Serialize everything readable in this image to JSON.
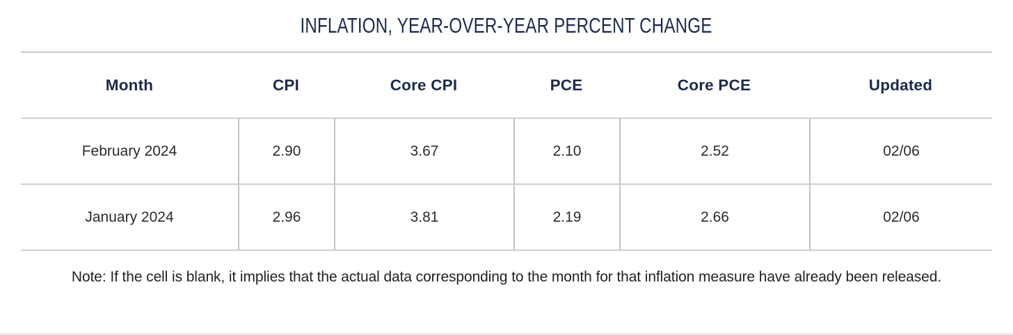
{
  "page": {
    "title": "INFLATION, YEAR-OVER-YEAR PERCENT CHANGE",
    "note": "Note: If the cell is blank, it implies that the actual data corresponding to the month for that inflation measure have already been released."
  },
  "chart_data": {
    "type": "table",
    "title": "INFLATION, YEAR-OVER-YEAR PERCENT CHANGE",
    "columns": [
      "Month",
      "CPI",
      "Core CPI",
      "PCE",
      "Core PCE",
      "Updated"
    ],
    "rows": [
      [
        "February 2024",
        "2.90",
        "3.67",
        "2.10",
        "2.52",
        "02/06"
      ],
      [
        "January 2024",
        "2.96",
        "3.81",
        "2.19",
        "2.66",
        "02/06"
      ]
    ],
    "note": "Note: If the cell is blank, it implies that the actual data corresponding to the month for that inflation measure have already been released."
  },
  "colors": {
    "title_navy": "#1b2a4d",
    "header_navy": "#1b2a4d",
    "body_text": "#2b2b30",
    "horizontal_line": "#cdcfd3",
    "top_line": "#c6c7cb",
    "vertical_line": "#bfc3ca",
    "bottom_strip": "#e9eaec",
    "background": "#ffffff"
  }
}
